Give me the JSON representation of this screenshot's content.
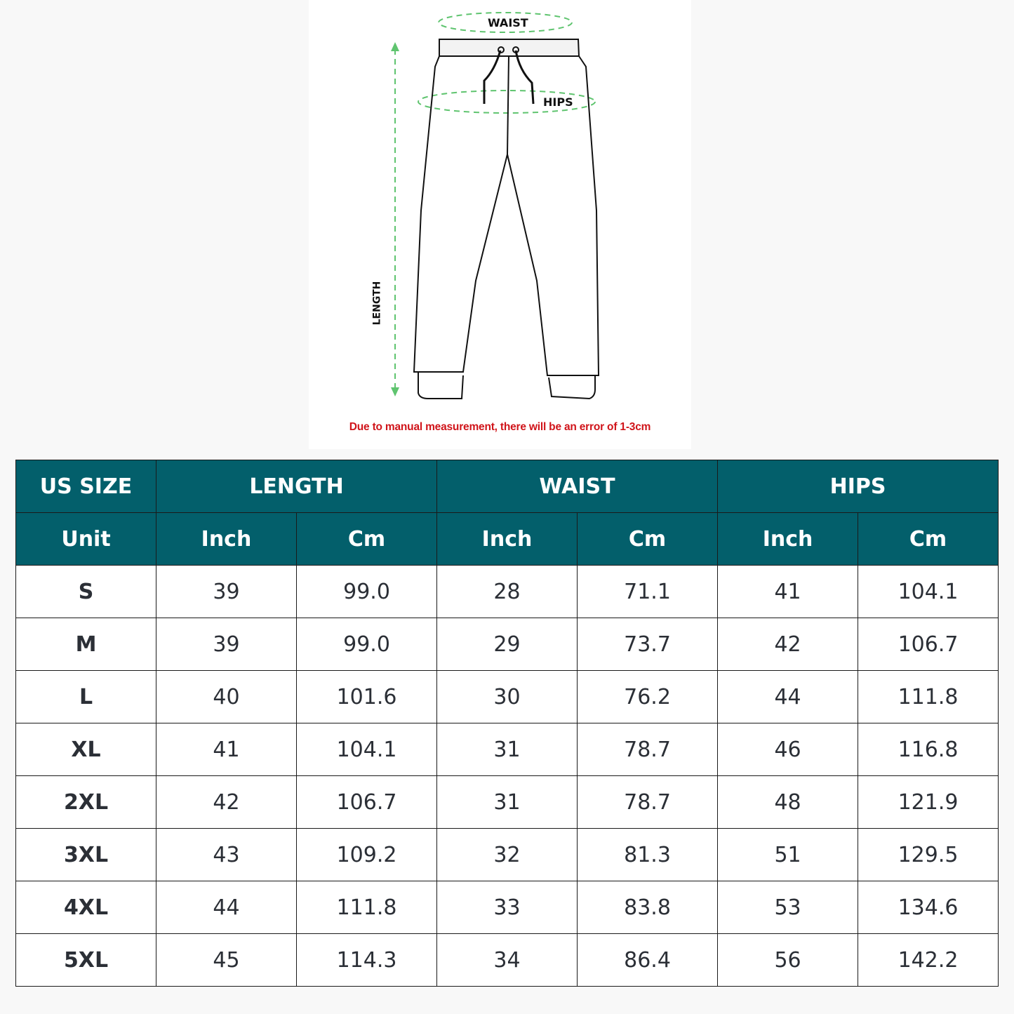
{
  "diagram": {
    "labels": {
      "waist": "WAIST",
      "hips": "HIPS",
      "length": "LENGTH"
    },
    "note": "Due to manual measurement, there will be an error of 1-3cm",
    "colors": {
      "measure_line": "#5fc46f",
      "note": "#d0141a"
    }
  },
  "table": {
    "header_color": "#035f6b",
    "groups": [
      "US SIZE",
      "LENGTH",
      "WAIST",
      "HIPS"
    ],
    "unit_label": "Unit",
    "units": [
      "Inch",
      "Cm",
      "Inch",
      "Cm",
      "Inch",
      "Cm"
    ],
    "rows": [
      [
        "S",
        "39",
        "99.0",
        "28",
        "71.1",
        "41",
        "104.1"
      ],
      [
        "M",
        "39",
        "99.0",
        "29",
        "73.7",
        "42",
        "106.7"
      ],
      [
        "L",
        "40",
        "101.6",
        "30",
        "76.2",
        "44",
        "111.8"
      ],
      [
        "XL",
        "41",
        "104.1",
        "31",
        "78.7",
        "46",
        "116.8"
      ],
      [
        "2XL",
        "42",
        "106.7",
        "31",
        "78.7",
        "48",
        "121.9"
      ],
      [
        "3XL",
        "43",
        "109.2",
        "32",
        "81.3",
        "51",
        "129.5"
      ],
      [
        "4XL",
        "44",
        "111.8",
        "33",
        "83.8",
        "53",
        "134.6"
      ],
      [
        "5XL",
        "45",
        "114.3",
        "34",
        "86.4",
        "56",
        "142.2"
      ]
    ]
  }
}
